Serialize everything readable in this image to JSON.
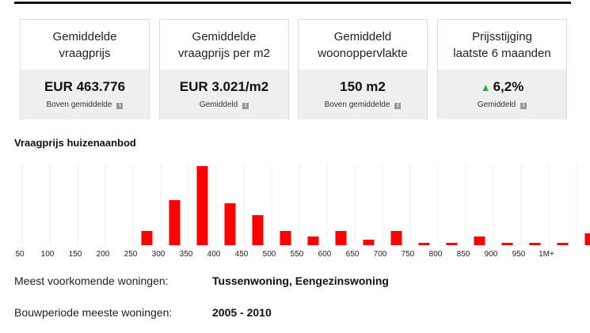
{
  "cards": [
    {
      "label_lines": [
        "Gemiddelde",
        "vraagprijs"
      ],
      "value": "EUR 463.776",
      "sub": "Boven gemiddelde",
      "info_icon": "info-icon"
    },
    {
      "label_lines": [
        "Gemiddelde",
        "vraagprijs per m2"
      ],
      "value": "EUR 3.021/m2",
      "sub": "Gemiddeld",
      "info_icon": "info-icon"
    },
    {
      "label_lines": [
        "Gemiddeld",
        "woonoppervlakte"
      ],
      "value": "150 m2",
      "sub": "Boven gemiddelde",
      "info_icon": "info-icon"
    },
    {
      "label_lines": [
        "Prijsstijging",
        "laatste 6 maanden"
      ],
      "value": "6,2%",
      "arrow": "▲",
      "arrow_icon": "arrow-up-icon",
      "arrow_color": "#22b14c",
      "sub": "Gemiddeld",
      "info_icon": "info-icon"
    }
  ],
  "chart_title": "Vraagprijs huizenaanbod",
  "chart_data": {
    "type": "bar",
    "title": "Vraagprijs huizenaanbod",
    "xlabel": "",
    "ylabel": "",
    "grid": "vertical",
    "bar_color": "#ff0000",
    "tick_labels": [
      "50",
      "100",
      "150",
      "200",
      "250",
      "300",
      "350",
      "400",
      "450",
      "500",
      "550",
      "600",
      "650",
      "700",
      "750",
      "800",
      "850",
      "900",
      "950",
      "1M+"
    ],
    "values": [
      0,
      0,
      0,
      0,
      18,
      57,
      100,
      53,
      38,
      18,
      11,
      18,
      7,
      18,
      3,
      3,
      11,
      3,
      3,
      3,
      15
    ],
    "ylim": [
      0,
      100
    ]
  },
  "info": [
    {
      "key": "Meest voorkomende woningen:",
      "value": "Tussenwoning, Eengezinswoning"
    },
    {
      "key": "Bouwperiode meeste woningen:",
      "value": "2005 - 2010"
    }
  ]
}
